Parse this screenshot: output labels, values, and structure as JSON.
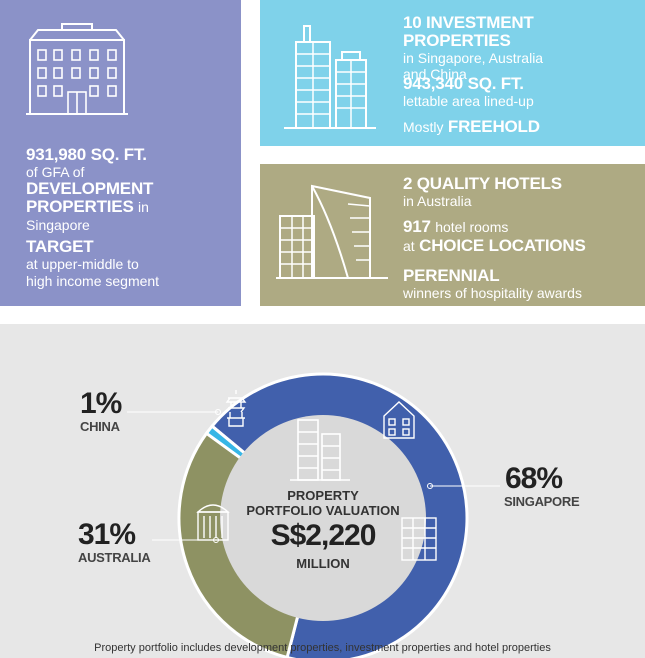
{
  "development": {
    "gfa_value": "931,980 SQ. FT.",
    "gfa_text": "of GFA of",
    "dev_label_1": "DEVELOPMENT",
    "dev_label_2": "PROPERTIES",
    "in_text": "in",
    "location": "Singapore",
    "target_label": "TARGET",
    "target_text_1": "at upper-middle to",
    "target_text_2": "high income segment",
    "color": "#8b92c8"
  },
  "investment": {
    "count_label": "10 INVESTMENT PROPERTIES",
    "locations_1": "in Singapore, Australia",
    "locations_2": "and China",
    "area_value": "943,340 SQ. FT.",
    "area_text": "lettable area lined-up",
    "mostly": "Mostly",
    "freehold": "FREEHOLD",
    "color": "#7fd2ea"
  },
  "hotels": {
    "count_label": "2 QUALITY HOTELS",
    "location": "in Australia",
    "rooms_value": "917",
    "rooms_text": "hotel rooms",
    "at_text": "at",
    "choice_label": "CHOICE LOCATIONS",
    "perennial_label": "PERENNIAL",
    "perennial_text": "winners of hospitality awards",
    "color": "#aeaa83"
  },
  "chart_data": {
    "type": "pie",
    "style": "donut",
    "categories": [
      "SINGAPORE",
      "AUSTRALIA",
      "CHINA"
    ],
    "values": [
      68,
      31,
      1
    ],
    "labels": [
      "68%",
      "31%",
      "1%"
    ],
    "colors": [
      "#4160ac",
      "#8e9263",
      "#36b6e6"
    ],
    "center_title_1": "PROPERTY",
    "center_title_2": "PORTFOLIO VALUATION",
    "center_value": "S$2,220",
    "center_unit": "MILLION"
  },
  "footnote": "Property portfolio includes development properties, investment properties and hotel properties"
}
